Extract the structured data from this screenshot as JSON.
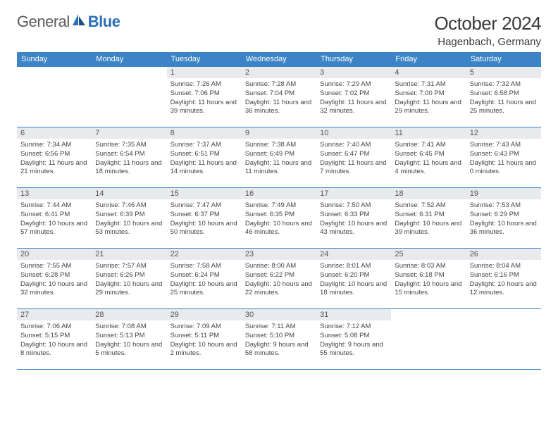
{
  "logo": {
    "part1": "General",
    "part2": "Blue"
  },
  "title": "October 2024",
  "location": "Hagenbach, Germany",
  "colors": {
    "header_bg": "#3c84c6",
    "header_fg": "#ffffff",
    "daynum_bg": "#e8eaed",
    "border": "#3c84c6"
  },
  "weekdays": [
    "Sunday",
    "Monday",
    "Tuesday",
    "Wednesday",
    "Thursday",
    "Friday",
    "Saturday"
  ],
  "weeks": [
    [
      null,
      null,
      {
        "n": "1",
        "sr": "7:26 AM",
        "ss": "7:06 PM",
        "dl": "11 hours and 39 minutes."
      },
      {
        "n": "2",
        "sr": "7:28 AM",
        "ss": "7:04 PM",
        "dl": "11 hours and 36 minutes."
      },
      {
        "n": "3",
        "sr": "7:29 AM",
        "ss": "7:02 PM",
        "dl": "11 hours and 32 minutes."
      },
      {
        "n": "4",
        "sr": "7:31 AM",
        "ss": "7:00 PM",
        "dl": "11 hours and 29 minutes."
      },
      {
        "n": "5",
        "sr": "7:32 AM",
        "ss": "6:58 PM",
        "dl": "11 hours and 25 minutes."
      }
    ],
    [
      {
        "n": "6",
        "sr": "7:34 AM",
        "ss": "6:56 PM",
        "dl": "11 hours and 21 minutes."
      },
      {
        "n": "7",
        "sr": "7:35 AM",
        "ss": "6:54 PM",
        "dl": "11 hours and 18 minutes."
      },
      {
        "n": "8",
        "sr": "7:37 AM",
        "ss": "6:51 PM",
        "dl": "11 hours and 14 minutes."
      },
      {
        "n": "9",
        "sr": "7:38 AM",
        "ss": "6:49 PM",
        "dl": "11 hours and 11 minutes."
      },
      {
        "n": "10",
        "sr": "7:40 AM",
        "ss": "6:47 PM",
        "dl": "11 hours and 7 minutes."
      },
      {
        "n": "11",
        "sr": "7:41 AM",
        "ss": "6:45 PM",
        "dl": "11 hours and 4 minutes."
      },
      {
        "n": "12",
        "sr": "7:43 AM",
        "ss": "6:43 PM",
        "dl": "11 hours and 0 minutes."
      }
    ],
    [
      {
        "n": "13",
        "sr": "7:44 AM",
        "ss": "6:41 PM",
        "dl": "10 hours and 57 minutes."
      },
      {
        "n": "14",
        "sr": "7:46 AM",
        "ss": "6:39 PM",
        "dl": "10 hours and 53 minutes."
      },
      {
        "n": "15",
        "sr": "7:47 AM",
        "ss": "6:37 PM",
        "dl": "10 hours and 50 minutes."
      },
      {
        "n": "16",
        "sr": "7:49 AM",
        "ss": "6:35 PM",
        "dl": "10 hours and 46 minutes."
      },
      {
        "n": "17",
        "sr": "7:50 AM",
        "ss": "6:33 PM",
        "dl": "10 hours and 43 minutes."
      },
      {
        "n": "18",
        "sr": "7:52 AM",
        "ss": "6:31 PM",
        "dl": "10 hours and 39 minutes."
      },
      {
        "n": "19",
        "sr": "7:53 AM",
        "ss": "6:29 PM",
        "dl": "10 hours and 36 minutes."
      }
    ],
    [
      {
        "n": "20",
        "sr": "7:55 AM",
        "ss": "6:28 PM",
        "dl": "10 hours and 32 minutes."
      },
      {
        "n": "21",
        "sr": "7:57 AM",
        "ss": "6:26 PM",
        "dl": "10 hours and 29 minutes."
      },
      {
        "n": "22",
        "sr": "7:58 AM",
        "ss": "6:24 PM",
        "dl": "10 hours and 25 minutes."
      },
      {
        "n": "23",
        "sr": "8:00 AM",
        "ss": "6:22 PM",
        "dl": "10 hours and 22 minutes."
      },
      {
        "n": "24",
        "sr": "8:01 AM",
        "ss": "6:20 PM",
        "dl": "10 hours and 18 minutes."
      },
      {
        "n": "25",
        "sr": "8:03 AM",
        "ss": "6:18 PM",
        "dl": "10 hours and 15 minutes."
      },
      {
        "n": "26",
        "sr": "8:04 AM",
        "ss": "6:16 PM",
        "dl": "10 hours and 12 minutes."
      }
    ],
    [
      {
        "n": "27",
        "sr": "7:06 AM",
        "ss": "5:15 PM",
        "dl": "10 hours and 8 minutes."
      },
      {
        "n": "28",
        "sr": "7:08 AM",
        "ss": "5:13 PM",
        "dl": "10 hours and 5 minutes."
      },
      {
        "n": "29",
        "sr": "7:09 AM",
        "ss": "5:11 PM",
        "dl": "10 hours and 2 minutes."
      },
      {
        "n": "30",
        "sr": "7:11 AM",
        "ss": "5:10 PM",
        "dl": "9 hours and 58 minutes."
      },
      {
        "n": "31",
        "sr": "7:12 AM",
        "ss": "5:08 PM",
        "dl": "9 hours and 55 minutes."
      },
      null,
      null
    ]
  ],
  "labels": {
    "sunrise": "Sunrise: ",
    "sunset": "Sunset: ",
    "daylight": "Daylight: "
  }
}
